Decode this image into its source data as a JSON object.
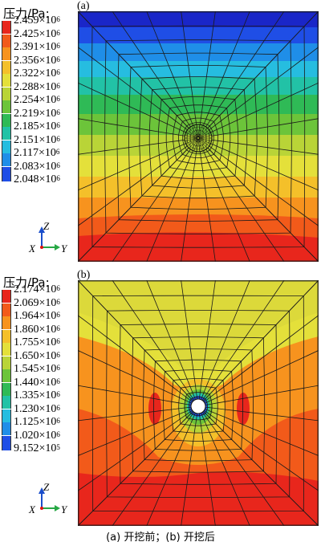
{
  "panels": [
    {
      "label": "(a)",
      "legend_title": "压力/Pa:",
      "legend": [
        {
          "text": "2.459×10",
          "exp": "6",
          "color": "#e8261c"
        },
        {
          "text": "2.425×10",
          "exp": "6",
          "color": "#f25a1a"
        },
        {
          "text": "2.391×10",
          "exp": "6",
          "color": "#f7931e"
        },
        {
          "text": "2.356×10",
          "exp": "6",
          "color": "#f4c02a"
        },
        {
          "text": "2.322×10",
          "exp": "6",
          "color": "#e4e03a"
        },
        {
          "text": "2.288×10",
          "exp": "6",
          "color": "#b9d437"
        },
        {
          "text": "2.254×10",
          "exp": "6",
          "color": "#6cc43a"
        },
        {
          "text": "2.219×10",
          "exp": "6",
          "color": "#2fba56"
        },
        {
          "text": "2.185×10",
          "exp": "6",
          "color": "#22c2a6"
        },
        {
          "text": "2.151×10",
          "exp": "6",
          "color": "#26bde0"
        },
        {
          "text": "2.117×10",
          "exp": "6",
          "color": "#1f8ee8"
        },
        {
          "text": "2.083×10",
          "exp": "6",
          "color": "#1f4ee6"
        },
        {
          "text": "2.048×10",
          "exp": "6",
          "color": "#1a26c8"
        }
      ]
    },
    {
      "label": "(b)",
      "legend_title": "压力/Pa:",
      "legend": [
        {
          "text": "2.174×10",
          "exp": "6",
          "color": "#e8261c"
        },
        {
          "text": "2.069×10",
          "exp": "6",
          "color": "#f25a1a"
        },
        {
          "text": "1.964×10",
          "exp": "6",
          "color": "#f7931e"
        },
        {
          "text": "1.860×10",
          "exp": "6",
          "color": "#f4c02a"
        },
        {
          "text": "1.755×10",
          "exp": "6",
          "color": "#e4e03a"
        },
        {
          "text": "1.650×10",
          "exp": "6",
          "color": "#b9d437"
        },
        {
          "text": "1.545×10",
          "exp": "6",
          "color": "#6cc43a"
        },
        {
          "text": "1.440×10",
          "exp": "6",
          "color": "#2fba56"
        },
        {
          "text": "1.335×10",
          "exp": "6",
          "color": "#22c2a6"
        },
        {
          "text": "1.230×10",
          "exp": "6",
          "color": "#26bde0"
        },
        {
          "text": "1.125×10",
          "exp": "6",
          "color": "#1f8ee8"
        },
        {
          "text": "1.020×10",
          "exp": "6",
          "color": "#1f4ee6"
        },
        {
          "text": "9.152×10",
          "exp": "5",
          "color": "#1a26c8"
        }
      ]
    }
  ],
  "axes": {
    "z": "Z",
    "x": "X",
    "y": "Y"
  },
  "caption": "(a)  开挖前；(b)  开挖后"
}
